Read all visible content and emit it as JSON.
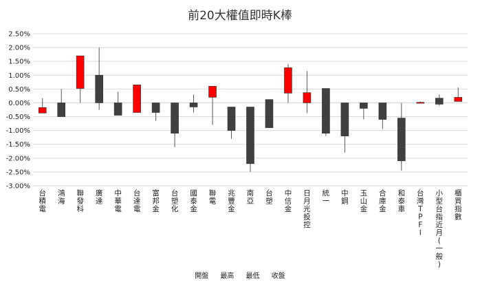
{
  "chart_data": {
    "type": "candlestick",
    "title": "前20大權值即時K棒",
    "legend": [
      "開盤",
      "最高",
      "最低",
      "收盤"
    ],
    "y_ticks": [
      "2.50%",
      "2.00%",
      "1.50%",
      "1.00%",
      "0.50%",
      "0.00%",
      "-0.50%",
      "-1.00%",
      "-1.50%",
      "-2.00%",
      "-2.50%",
      "-3.00%"
    ],
    "ylim": [
      -3.0,
      2.5
    ],
    "grid": true,
    "up_color": "#ff0000",
    "down_color": "#404040",
    "series": [
      {
        "name": "台積電",
        "open": -0.37,
        "high": 0.17,
        "low": -0.37,
        "close": -0.17
      },
      {
        "name": "鴻海",
        "open": 0.0,
        "high": 0.5,
        "low": -0.5,
        "close": -0.5
      },
      {
        "name": "聯發科",
        "open": 0.52,
        "high": 1.7,
        "low": 0.0,
        "close": 1.7
      },
      {
        "name": "廣達",
        "open": 1.0,
        "high": 2.0,
        "low": -0.25,
        "close": 0.0
      },
      {
        "name": "中華電",
        "open": 0.0,
        "high": 0.4,
        "low": -0.45,
        "close": -0.45
      },
      {
        "name": "台達電",
        "open": -0.35,
        "high": 0.65,
        "low": -0.35,
        "close": 0.65
      },
      {
        "name": "富邦金",
        "open": 0.0,
        "high": 0.0,
        "low": -0.65,
        "close": -0.35
      },
      {
        "name": "台塑化",
        "open": 0.0,
        "high": 0.0,
        "low": -1.6,
        "close": -1.1
      },
      {
        "name": "國泰金",
        "open": 0.0,
        "high": 0.3,
        "low": -0.35,
        "close": -0.15
      },
      {
        "name": "聯電",
        "open": 0.2,
        "high": 0.6,
        "low": -0.8,
        "close": 0.6
      },
      {
        "name": "兆豐金",
        "open": -0.15,
        "high": -0.15,
        "low": -1.3,
        "close": -1.0
      },
      {
        "name": "南亞",
        "open": -0.15,
        "high": -0.15,
        "low": -2.5,
        "close": -2.2
      },
      {
        "name": "台塑",
        "open": 0.12,
        "high": 0.12,
        "low": -0.9,
        "close": -0.9
      },
      {
        "name": "中信金",
        "open": 0.35,
        "high": 1.4,
        "low": 0.0,
        "close": 1.27
      },
      {
        "name": "日月光投控",
        "open": 0.0,
        "high": 1.15,
        "low": -0.37,
        "close": 0.37
      },
      {
        "name": "統一",
        "open": 0.52,
        "high": 0.52,
        "low": -1.2,
        "close": -1.1
      },
      {
        "name": "中鋼",
        "open": 0.0,
        "high": 0.0,
        "low": -1.8,
        "close": -1.2
      },
      {
        "name": "玉山金",
        "open": 0.0,
        "high": 0.0,
        "low": -0.6,
        "close": -0.2
      },
      {
        "name": "合庫金",
        "open": 0.0,
        "high": 0.0,
        "low": -0.95,
        "close": -0.6
      },
      {
        "name": "和泰車",
        "open": -0.55,
        "high": 0.0,
        "low": -2.45,
        "close": -2.1
      },
      {
        "name": "台灣TPFI",
        "open": 0.02,
        "high": 0.05,
        "low": 0.0,
        "close": 0.02
      },
      {
        "name": "小型台指近月(一般)",
        "open": 0.17,
        "high": 0.3,
        "low": -0.1,
        "close": -0.05
      },
      {
        "name": "櫃買指數",
        "open": 0.05,
        "high": 0.55,
        "low": 0.05,
        "close": 0.2
      }
    ]
  }
}
